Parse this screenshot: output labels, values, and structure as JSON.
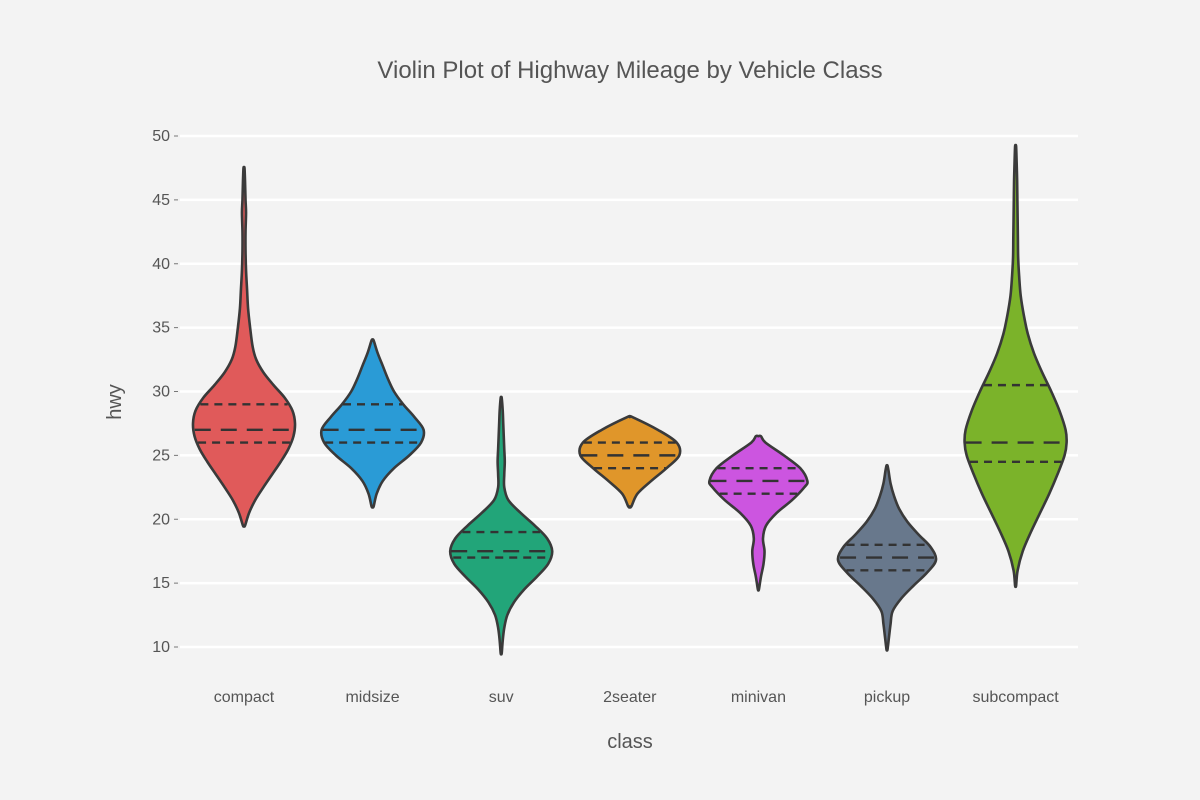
{
  "chart_data": {
    "type": "violin",
    "title": "Violin Plot of Highway Mileage by Vehicle Class",
    "xlabel": "class",
    "ylabel": "hwy",
    "ylim": [
      8,
      52
    ],
    "yticks": [
      10,
      15,
      20,
      25,
      30,
      35,
      40,
      45,
      50
    ],
    "grid": true,
    "legend": "none",
    "inner": "quartile",
    "categories": [
      "compact",
      "midsize",
      "suv",
      "2seater",
      "minivan",
      "pickup",
      "subcompact"
    ],
    "series": [
      {
        "category": "compact",
        "color": "#E05A5A",
        "min": 19.5,
        "max": 47.5,
        "q1": 26,
        "median": 27,
        "q3": 29,
        "density": [
          [
            19.5,
            0.02
          ],
          [
            20.5,
            0.1
          ],
          [
            21.5,
            0.22
          ],
          [
            22.5,
            0.38
          ],
          [
            23.5,
            0.55
          ],
          [
            24.5,
            0.72
          ],
          [
            25.5,
            0.87
          ],
          [
            26.5,
            0.97
          ],
          [
            27.5,
            1.0
          ],
          [
            28.5,
            0.95
          ],
          [
            29.5,
            0.8
          ],
          [
            30.5,
            0.58
          ],
          [
            31.5,
            0.38
          ],
          [
            32.5,
            0.24
          ],
          [
            33.5,
            0.17
          ],
          [
            35,
            0.12
          ],
          [
            36.5,
            0.08
          ],
          [
            38,
            0.06
          ],
          [
            39.5,
            0.04
          ],
          [
            41,
            0.03
          ],
          [
            42.5,
            0.03
          ],
          [
            44,
            0.04
          ],
          [
            45,
            0.03
          ],
          [
            46.5,
            0.02
          ],
          [
            47.5,
            0.01
          ]
        ]
      },
      {
        "category": "midsize",
        "color": "#2A9BD6",
        "min": 21,
        "max": 34,
        "q1": 26,
        "median": 27,
        "q3": 29,
        "density": [
          [
            21,
            0.02
          ],
          [
            22,
            0.08
          ],
          [
            23,
            0.2
          ],
          [
            24,
            0.42
          ],
          [
            25,
            0.72
          ],
          [
            26,
            0.95
          ],
          [
            27,
            1.0
          ],
          [
            28,
            0.82
          ],
          [
            29,
            0.6
          ],
          [
            30,
            0.42
          ],
          [
            31,
            0.3
          ],
          [
            32,
            0.2
          ],
          [
            33,
            0.1
          ],
          [
            34,
            0.02
          ]
        ]
      },
      {
        "category": "suv",
        "color": "#22A579",
        "min": 9.5,
        "max": 29.5,
        "q1": 17,
        "median": 17.5,
        "q3": 19,
        "density": [
          [
            9.5,
            0.01
          ],
          [
            10.5,
            0.03
          ],
          [
            11.5,
            0.06
          ],
          [
            12.5,
            0.12
          ],
          [
            13.5,
            0.25
          ],
          [
            14.5,
            0.45
          ],
          [
            15.5,
            0.7
          ],
          [
            16.5,
            0.92
          ],
          [
            17.5,
            1.0
          ],
          [
            18.5,
            0.9
          ],
          [
            19.5,
            0.66
          ],
          [
            20.5,
            0.38
          ],
          [
            21.5,
            0.14
          ],
          [
            22.5,
            0.06
          ],
          [
            23.5,
            0.06
          ],
          [
            24.5,
            0.07
          ],
          [
            25.5,
            0.06
          ],
          [
            26.5,
            0.05
          ],
          [
            27.5,
            0.04
          ],
          [
            28.5,
            0.03
          ],
          [
            29.5,
            0.01
          ]
        ]
      },
      {
        "category": "2seater",
        "color": "#E0962A",
        "min": 21,
        "max": 28,
        "q1": 24,
        "median": 25,
        "q3": 26,
        "density": [
          [
            21,
            0.03
          ],
          [
            22,
            0.15
          ],
          [
            23,
            0.42
          ],
          [
            24,
            0.72
          ],
          [
            25,
            0.97
          ],
          [
            26,
            0.92
          ],
          [
            27,
            0.55
          ],
          [
            28,
            0.05
          ]
        ]
      },
      {
        "category": "minivan",
        "color": "#CC55E0",
        "min": 14.5,
        "max": 26.5,
        "q1": 22,
        "median": 23,
        "q3": 24,
        "density": [
          [
            14.5,
            0.01
          ],
          [
            15.5,
            0.05
          ],
          [
            16.5,
            0.1
          ],
          [
            17.5,
            0.12
          ],
          [
            18.5,
            0.09
          ],
          [
            19.5,
            0.15
          ],
          [
            20.5,
            0.36
          ],
          [
            21.5,
            0.66
          ],
          [
            22.5,
            0.9
          ],
          [
            23,
            0.96
          ],
          [
            24,
            0.82
          ],
          [
            25,
            0.5
          ],
          [
            26,
            0.14
          ],
          [
            26.5,
            0.05
          ]
        ]
      },
      {
        "category": "pickup",
        "color": "#68788C",
        "min": 9.8,
        "max": 24.2,
        "q1": 16,
        "median": 17,
        "q3": 18,
        "density": [
          [
            9.8,
            0.01
          ],
          [
            10.8,
            0.04
          ],
          [
            11.8,
            0.07
          ],
          [
            12.8,
            0.11
          ],
          [
            13.8,
            0.28
          ],
          [
            14.8,
            0.52
          ],
          [
            15.8,
            0.78
          ],
          [
            16.8,
            0.96
          ],
          [
            17.8,
            0.86
          ],
          [
            18.8,
            0.62
          ],
          [
            19.8,
            0.4
          ],
          [
            20.8,
            0.24
          ],
          [
            21.8,
            0.14
          ],
          [
            22.8,
            0.07
          ],
          [
            23.8,
            0.03
          ],
          [
            24.2,
            0.01
          ]
        ]
      },
      {
        "category": "subcompact",
        "color": "#7BB32A",
        "min": 14.8,
        "max": 49.2,
        "q1": 24.5,
        "median": 26,
        "q3": 30.5,
        "density": [
          [
            14.8,
            0.01
          ],
          [
            16,
            0.04
          ],
          [
            17.5,
            0.14
          ],
          [
            19,
            0.3
          ],
          [
            20.5,
            0.48
          ],
          [
            22,
            0.66
          ],
          [
            23.5,
            0.82
          ],
          [
            25,
            0.96
          ],
          [
            26,
            1.0
          ],
          [
            27,
            0.98
          ],
          [
            28.5,
            0.86
          ],
          [
            30,
            0.7
          ],
          [
            31.5,
            0.52
          ],
          [
            33,
            0.36
          ],
          [
            34.5,
            0.24
          ],
          [
            36,
            0.16
          ],
          [
            37.5,
            0.1
          ],
          [
            39,
            0.07
          ],
          [
            40.5,
            0.05
          ],
          [
            42,
            0.045
          ],
          [
            43.5,
            0.04
          ],
          [
            45,
            0.035
          ],
          [
            46.5,
            0.03
          ],
          [
            48,
            0.02
          ],
          [
            49.2,
            0.01
          ]
        ]
      }
    ]
  }
}
